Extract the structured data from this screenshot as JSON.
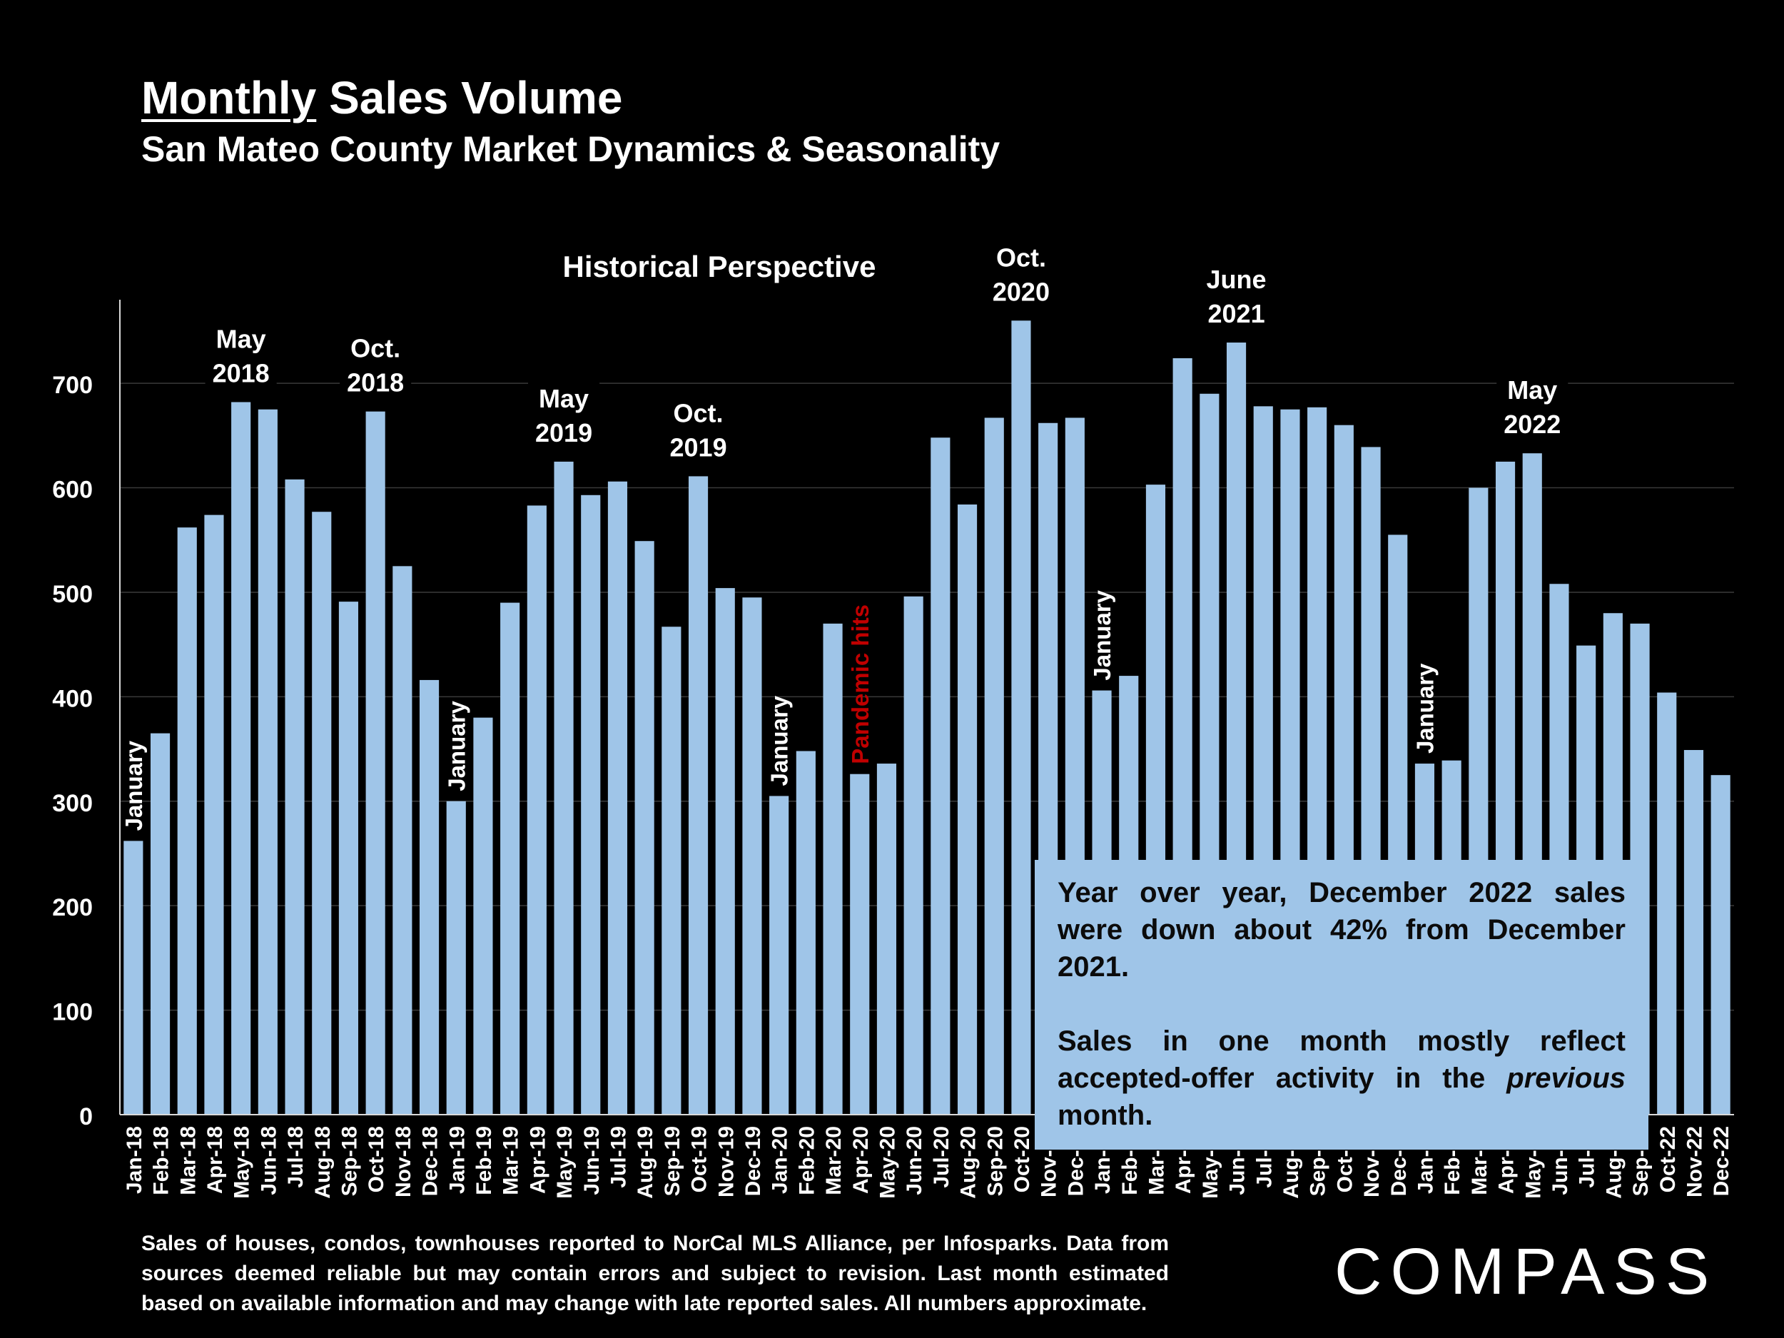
{
  "header": {
    "title_underlined": "Monthly",
    "title_rest": " Sales Volume",
    "subtitle": "San Mateo County Market Dynamics & Seasonality"
  },
  "chart_data": {
    "type": "bar",
    "title": "Historical Perspective",
    "xlabel": "",
    "ylabel": "",
    "ylim": [
      0,
      780
    ],
    "yticks": [
      0,
      100,
      200,
      300,
      400,
      500,
      600,
      700
    ],
    "grid": true,
    "bar_color": "#9fc5e8",
    "categories": [
      "Jan-18",
      "Feb-18",
      "Mar-18",
      "Apr-18",
      "May-18",
      "Jun-18",
      "Jul-18",
      "Aug-18",
      "Sep-18",
      "Oct-18",
      "Nov-18",
      "Dec-18",
      "Jan-19",
      "Feb-19",
      "Mar-19",
      "Apr-19",
      "May-19",
      "Jun-19",
      "Jul-19",
      "Aug-19",
      "Sep-19",
      "Oct-19",
      "Nov-19",
      "Dec-19",
      "Jan-20",
      "Feb-20",
      "Mar-20",
      "Apr-20",
      "May-20",
      "Jun-20",
      "Jul-20",
      "Aug-20",
      "Sep-20",
      "Oct-20",
      "Nov-20",
      "Dec-20",
      "Jan-21",
      "Feb-21",
      "Mar-21",
      "Apr-21",
      "May-21",
      "Jun-21",
      "Jul-21",
      "Aug-21",
      "Sep-21",
      "Oct-21",
      "Nov-21",
      "Dec-21",
      "Jan-22",
      "Feb-22",
      "Mar-22",
      "Apr-22",
      "May-22",
      "Jun-22",
      "Jul-22",
      "Aug-22",
      "Sep-22",
      "Oct-22",
      "Nov-22",
      "Dec-22"
    ],
    "values": [
      262,
      365,
      562,
      574,
      682,
      675,
      608,
      577,
      491,
      673,
      525,
      416,
      300,
      380,
      490,
      583,
      625,
      593,
      606,
      549,
      467,
      611,
      504,
      495,
      305,
      348,
      470,
      326,
      336,
      496,
      648,
      584,
      667,
      760,
      662,
      667,
      406,
      420,
      603,
      724,
      690,
      739,
      678,
      675,
      677,
      660,
      639,
      555,
      336,
      339,
      600,
      625,
      633,
      508,
      449,
      480,
      470,
      404,
      349,
      325
    ],
    "annotations": [
      {
        "category": "Jan-18",
        "text": "January",
        "style": "vertical"
      },
      {
        "category": "May-18",
        "text": "May 2018",
        "style": "top"
      },
      {
        "category": "Oct-18",
        "text": "Oct. 2018",
        "style": "top"
      },
      {
        "category": "Jan-19",
        "text": "January",
        "style": "vertical"
      },
      {
        "category": "May-19",
        "text": "May 2019",
        "style": "top"
      },
      {
        "category": "Oct-19",
        "text": "Oct. 2019",
        "style": "top"
      },
      {
        "category": "Jan-20",
        "text": "January",
        "style": "vertical"
      },
      {
        "category": "Apr-20",
        "text": "Pandemic hits",
        "style": "vertical-red"
      },
      {
        "category": "Oct-20",
        "text": "Oct. 2020",
        "style": "top"
      },
      {
        "category": "Jan-21",
        "text": "January",
        "style": "vertical"
      },
      {
        "category": "Jun-21",
        "text": "June 2021",
        "style": "top"
      },
      {
        "category": "Jan-22",
        "text": "January",
        "style": "vertical"
      },
      {
        "category": "May-22",
        "text": "May 2022",
        "style": "top"
      }
    ],
    "highlight_color": "#c00000"
  },
  "note": {
    "p1": "Year over year, December 2022 sales were down about 42% from December 2021.",
    "p2_before": "Sales in one month mostly reflect accepted-offer activity in the ",
    "p2_italic": "previous",
    "p2_after": " month."
  },
  "footer": {
    "text": "Sales of houses, condos, townhouses reported to NorCal MLS Alliance, per Infosparks. Data from sources deemed reliable but may contain errors and subject to revision. Last month estimated based on available information and may change with late reported sales. All numbers approximate."
  },
  "logo": {
    "text": "COMPASS"
  }
}
